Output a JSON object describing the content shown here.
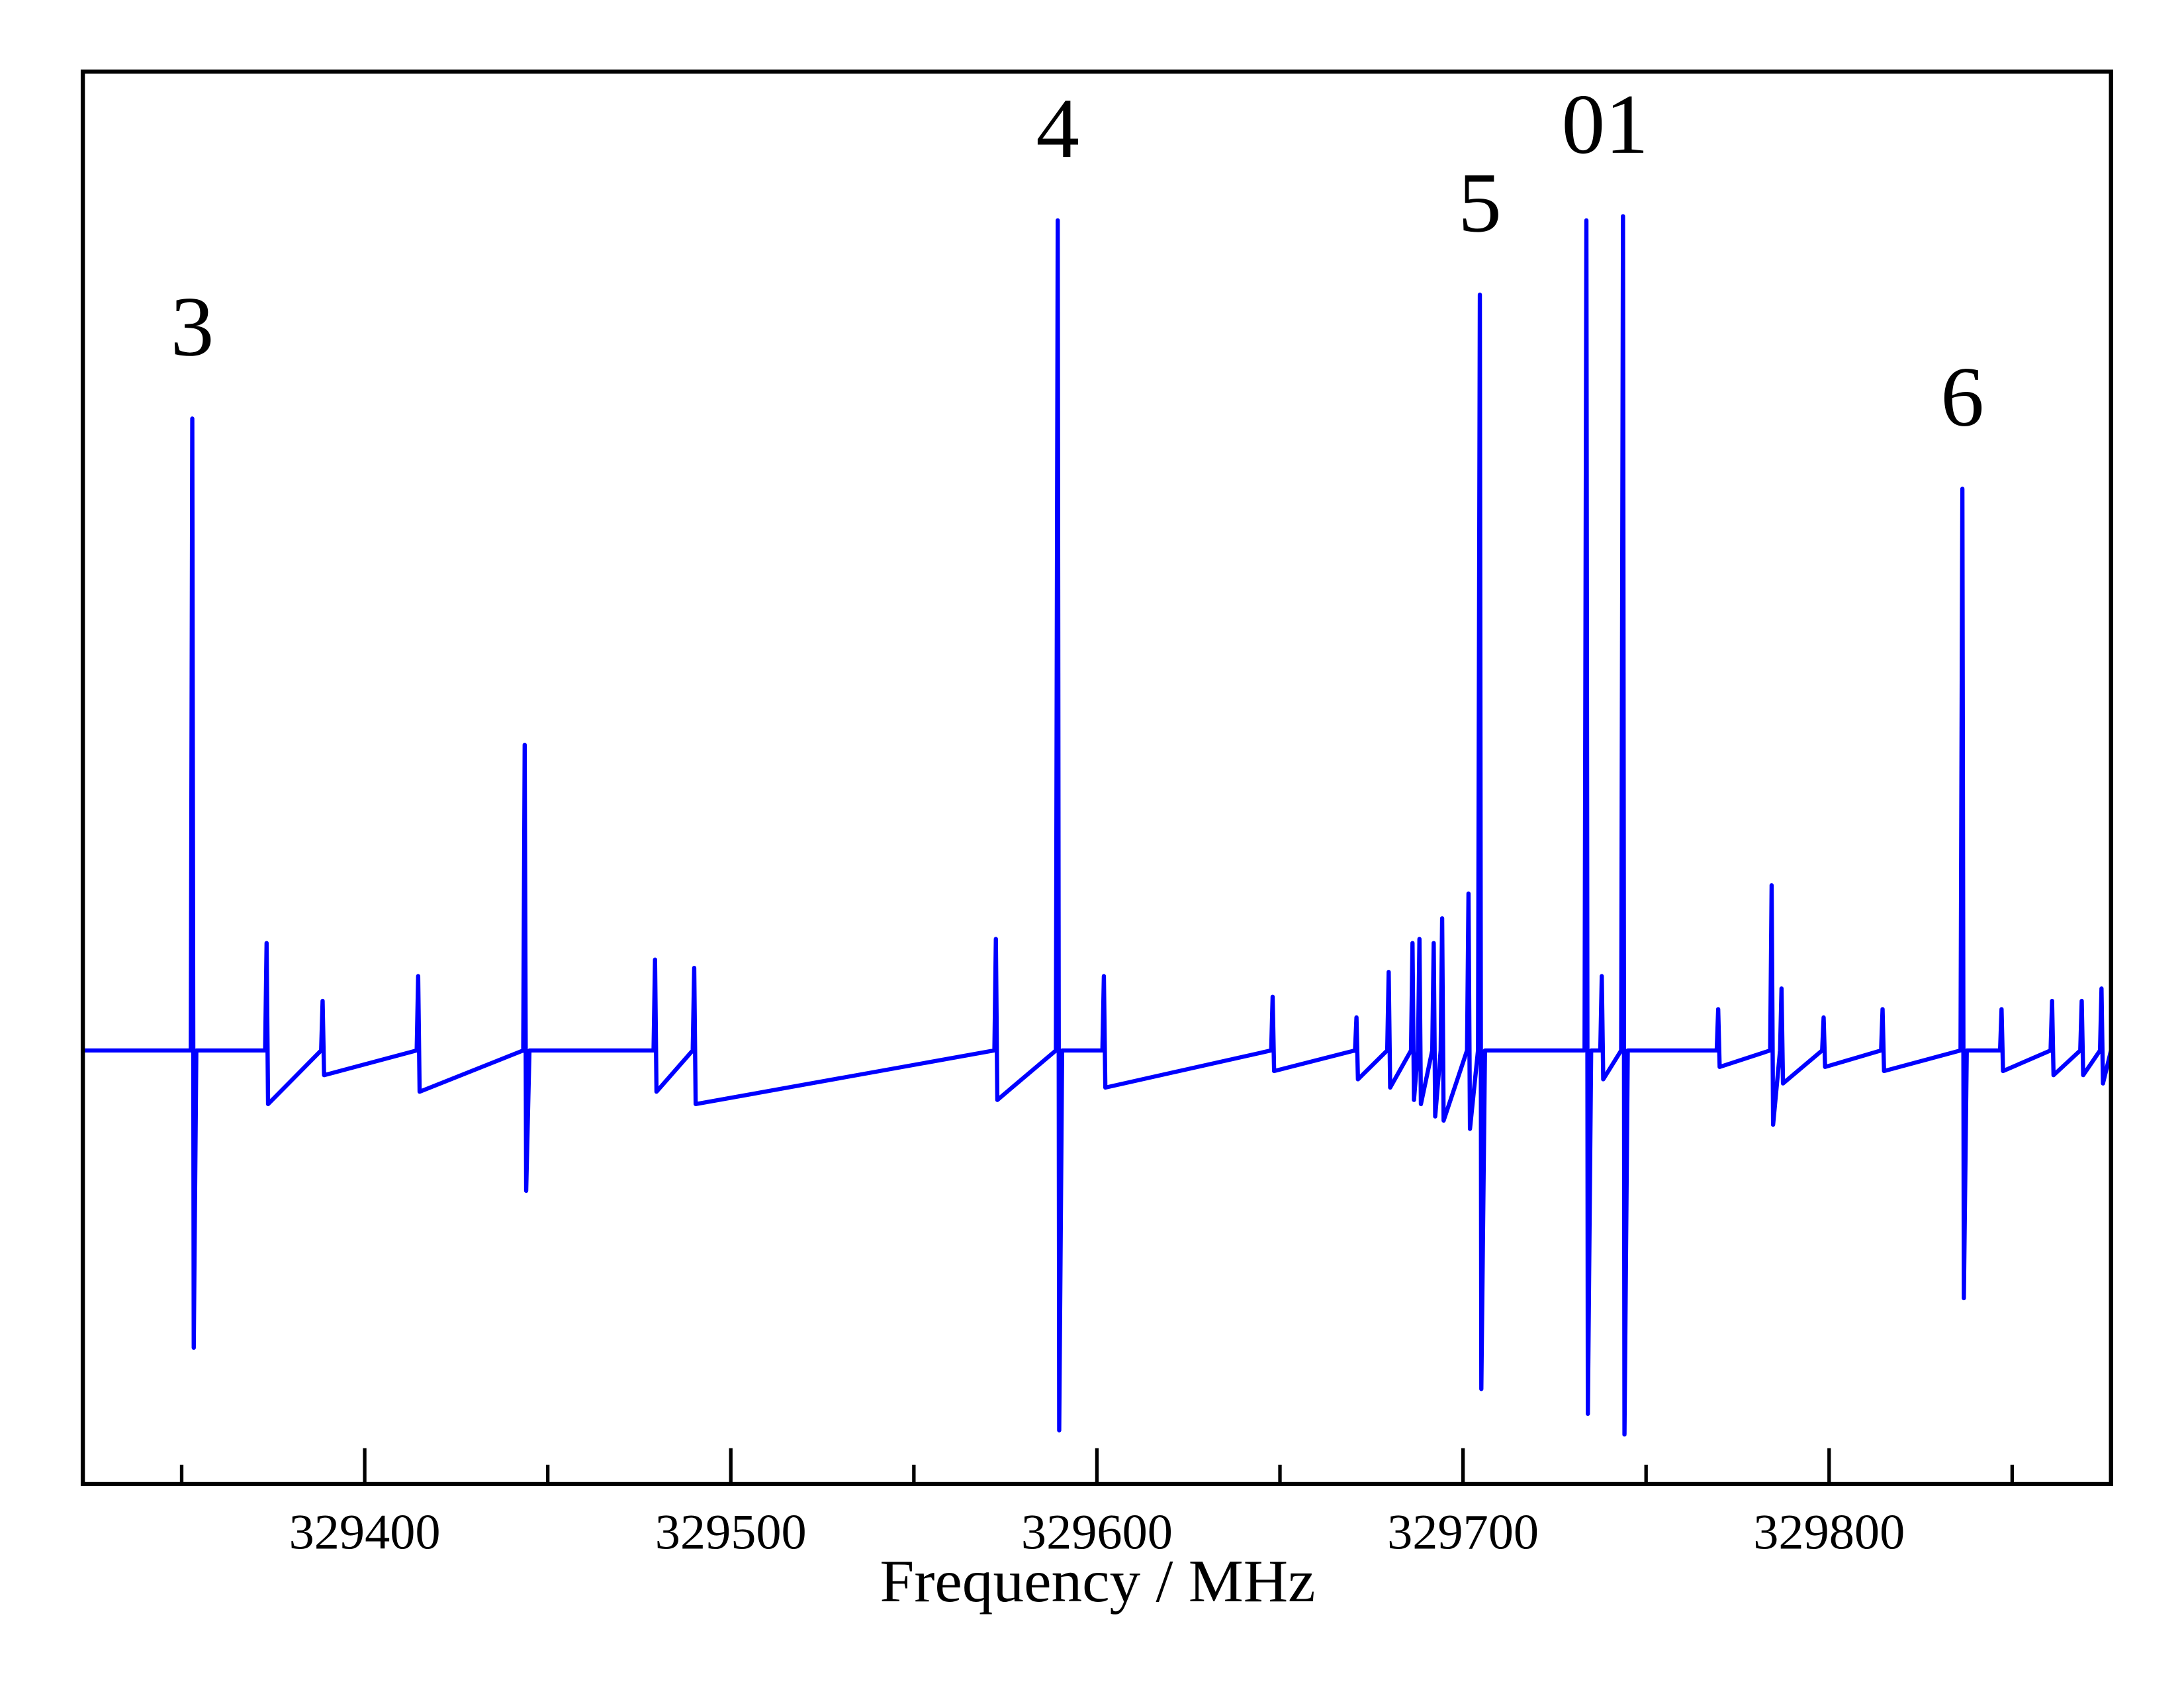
{
  "chart_data": {
    "type": "line",
    "xlabel": "Frequency / MHz",
    "color": "#0000ff",
    "xlim": [
      329323,
      329877
    ],
    "xticks": [
      329400,
      329500,
      329600,
      329700,
      329800
    ],
    "xminorticks": [
      329350,
      329450,
      329550,
      329650,
      329750,
      329850
    ],
    "ylim": [
      -1.05,
      2.37
    ],
    "x": [
      329323,
      329352.5,
      329352.9,
      329353.3,
      329354,
      329372.8,
      329373.2,
      329373.6,
      329388.1,
      329388.5,
      329388.9,
      329414.2,
      329414.6,
      329415,
      329443.3,
      329443.7,
      329444.1,
      329445,
      329478.9,
      329479.3,
      329479.7,
      329489.6,
      329490,
      329490.4,
      329572,
      329572.4,
      329572.8,
      329588.8,
      329589.3,
      329589.7,
      329590.5,
      329601.5,
      329601.9,
      329602.3,
      329647.6,
      329648,
      329648.4,
      329670.5,
      329670.9,
      329671.3,
      329679.3,
      329679.7,
      329680.1,
      329685.8,
      329686.2,
      329686.6,
      329687.7,
      329688.1,
      329688.5,
      329691.6,
      329692,
      329692.4,
      329693.9,
      329694.3,
      329694.7,
      329701.1,
      329701.5,
      329701.9,
      329704.1,
      329704.6,
      329705,
      329706,
      329733.2,
      329733.7,
      329734.1,
      329735,
      329737.5,
      329737.9,
      329738.3,
      329743.2,
      329743.7,
      329744.1,
      329745,
      329769.3,
      329769.7,
      329770.1,
      329783.9,
      329784.3,
      329784.7,
      329786.6,
      329787,
      329787.4,
      329798.1,
      329798.5,
      329798.9,
      329814.2,
      329814.6,
      329815,
      329835.9,
      329836.4,
      329836.8,
      329837.6,
      329846.7,
      329847.1,
      329847.5,
      329860.5,
      329860.9,
      329861.3,
      329868.6,
      329869,
      329869.4,
      329874,
      329874.4,
      329874.8,
      329877
    ],
    "values": [
      0,
      0,
      1.53,
      -0.72,
      0,
      0,
      0.26,
      -0.13,
      0,
      0.12,
      -0.06,
      0,
      0.18,
      -0.1,
      0,
      0.74,
      -0.34,
      0,
      0,
      0.22,
      -0.1,
      0,
      0.2,
      -0.13,
      0,
      0.27,
      -0.12,
      0,
      2.01,
      -0.92,
      0,
      0,
      0.18,
      -0.09,
      0,
      0.13,
      -0.05,
      0,
      0.08,
      -0.07,
      0,
      0.19,
      -0.09,
      0,
      0.26,
      -0.12,
      0,
      0.27,
      -0.13,
      0,
      0.26,
      -0.16,
      0,
      0.32,
      -0.17,
      0,
      0.38,
      -0.19,
      0,
      1.83,
      -0.82,
      0,
      0,
      2.01,
      -0.88,
      0,
      0,
      0.18,
      -0.07,
      0,
      2.02,
      -0.93,
      0,
      0,
      0.1,
      -0.04,
      0,
      0.4,
      -0.18,
      0,
      0.15,
      -0.08,
      0,
      0.08,
      -0.04,
      0,
      0.1,
      -0.05,
      0,
      1.36,
      -0.6,
      0,
      0,
      0.1,
      -0.05,
      0,
      0.12,
      -0.06,
      0,
      0.12,
      -0.06,
      0,
      0.15,
      -0.08,
      0
    ],
    "annotations": [
      {
        "text": "3",
        "x": 329352.9
      },
      {
        "text": "4",
        "x": 329589.3
      },
      {
        "text": "5",
        "x": 329704.6
      },
      {
        "text": "01",
        "x": 329738.8
      },
      {
        "text": "6",
        "x": 329836.4
      }
    ]
  }
}
